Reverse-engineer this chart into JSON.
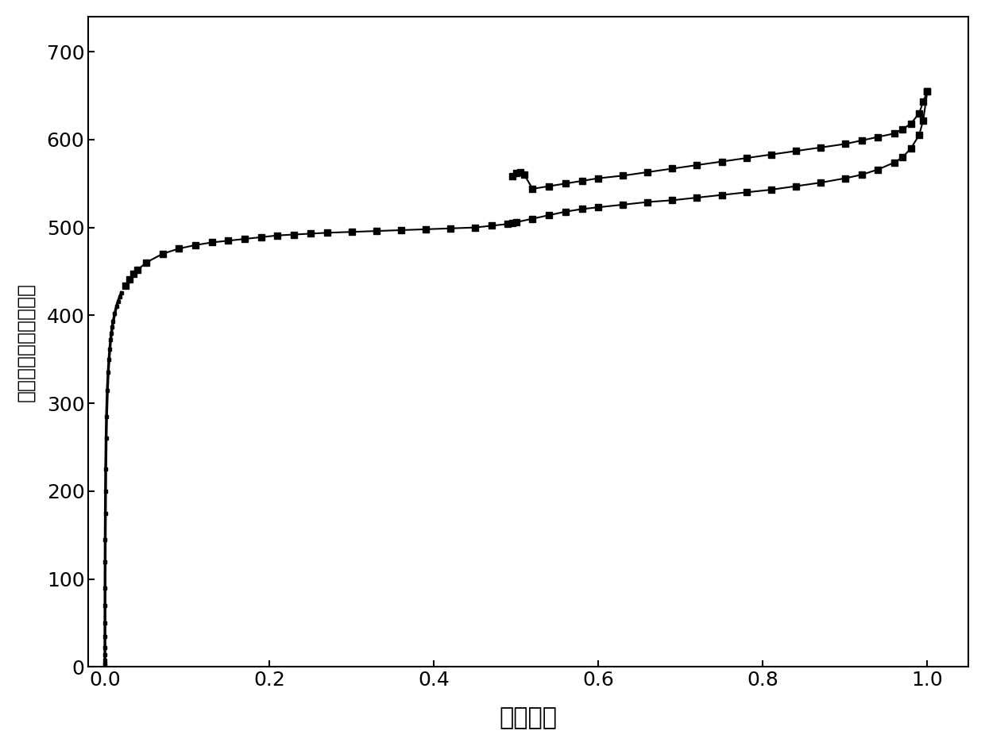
{
  "xlabel": "相对压力",
  "ylabel": "氮气吸附量／毫升／克",
  "xlim": [
    -0.02,
    1.05
  ],
  "ylim": [
    0,
    740
  ],
  "yticks": [
    0,
    100,
    200,
    300,
    400,
    500,
    600,
    700
  ],
  "xticks": [
    0.0,
    0.2,
    0.4,
    0.6,
    0.8,
    1.0
  ],
  "adsorption_x": [
    2e-06,
    5e-06,
    1e-05,
    2e-05,
    4e-05,
    7e-05,
    0.0001,
    0.00015,
    0.0002,
    0.0003,
    0.0004,
    0.0006,
    0.0008,
    0.001,
    0.0015,
    0.002,
    0.003,
    0.004,
    0.005,
    0.006,
    0.007,
    0.008,
    0.009,
    0.01,
    0.012,
    0.014,
    0.016,
    0.018,
    0.02,
    0.025,
    0.03,
    0.035,
    0.04,
    0.05,
    0.07,
    0.09,
    0.11,
    0.13,
    0.15,
    0.17,
    0.19,
    0.21,
    0.23,
    0.25,
    0.27,
    0.3,
    0.33,
    0.36,
    0.39,
    0.42,
    0.45,
    0.47,
    0.49,
    0.495,
    0.5,
    0.52,
    0.54,
    0.56,
    0.58,
    0.6,
    0.63,
    0.66,
    0.69,
    0.72,
    0.75,
    0.78,
    0.81,
    0.84,
    0.87,
    0.9,
    0.92,
    0.94,
    0.96,
    0.97,
    0.98,
    0.99,
    0.995,
    1.0
  ],
  "adsorption_y": [
    2,
    4,
    8,
    14,
    22,
    35,
    50,
    70,
    90,
    120,
    145,
    175,
    200,
    225,
    260,
    285,
    315,
    335,
    350,
    362,
    372,
    380,
    387,
    393,
    402,
    410,
    416,
    421,
    426,
    434,
    441,
    447,
    452,
    460,
    470,
    476,
    480,
    483,
    485,
    487,
    489,
    491,
    492,
    493,
    494,
    495,
    496,
    497,
    498,
    499,
    500,
    502,
    504,
    505,
    506,
    510,
    514,
    518,
    521,
    523,
    526,
    529,
    531,
    534,
    537,
    540,
    543,
    547,
    551,
    556,
    560,
    566,
    574,
    580,
    590,
    605,
    622,
    655
  ],
  "desorption_x": [
    1.0,
    0.995,
    0.99,
    0.98,
    0.97,
    0.96,
    0.94,
    0.92,
    0.9,
    0.87,
    0.84,
    0.81,
    0.78,
    0.75,
    0.72,
    0.69,
    0.66,
    0.63,
    0.6,
    0.58,
    0.56,
    0.54,
    0.52,
    0.51,
    0.505,
    0.5,
    0.495
  ],
  "desorption_y": [
    655,
    643,
    630,
    618,
    612,
    607,
    603,
    599,
    595,
    591,
    587,
    583,
    579,
    575,
    571,
    567,
    563,
    559,
    556,
    553,
    550,
    547,
    544,
    560,
    563,
    562,
    558
  ],
  "line_color": "#000000",
  "marker": "s",
  "marker_size": 6,
  "line_width": 1.5,
  "background_color": "#ffffff",
  "xlabel_fontsize": 22,
  "ylabel_fontsize": 18,
  "tick_fontsize": 18,
  "spine_linewidth": 1.5,
  "dense_cutoff": 0.02
}
